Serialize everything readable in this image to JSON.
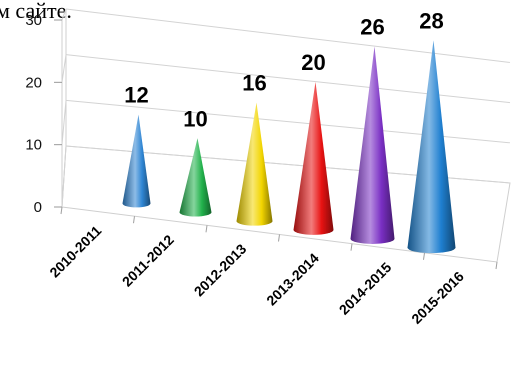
{
  "page": {
    "top_cut_text": "м сайте."
  },
  "chart_data": {
    "type": "bar",
    "shape": "cone",
    "categories": [
      "2010-2011",
      "2011-2012",
      "2012-2013",
      "2013-2014",
      "2014-2015",
      "2015-2016"
    ],
    "values": [
      12,
      10,
      16,
      20,
      26,
      28
    ],
    "data_labels": [
      "12",
      "10",
      "16",
      "20",
      "26",
      "28"
    ],
    "colors": [
      "#2f86d4",
      "#22b24c",
      "#f2d500",
      "#e81212",
      "#7a2fc4",
      "#1f7fd0"
    ],
    "y_ticks": [
      "0",
      "10",
      "20",
      "30"
    ],
    "ylim": [
      0,
      30
    ],
    "grid": true,
    "legend": "none",
    "title": "",
    "xlabel": "",
    "ylabel": ""
  }
}
